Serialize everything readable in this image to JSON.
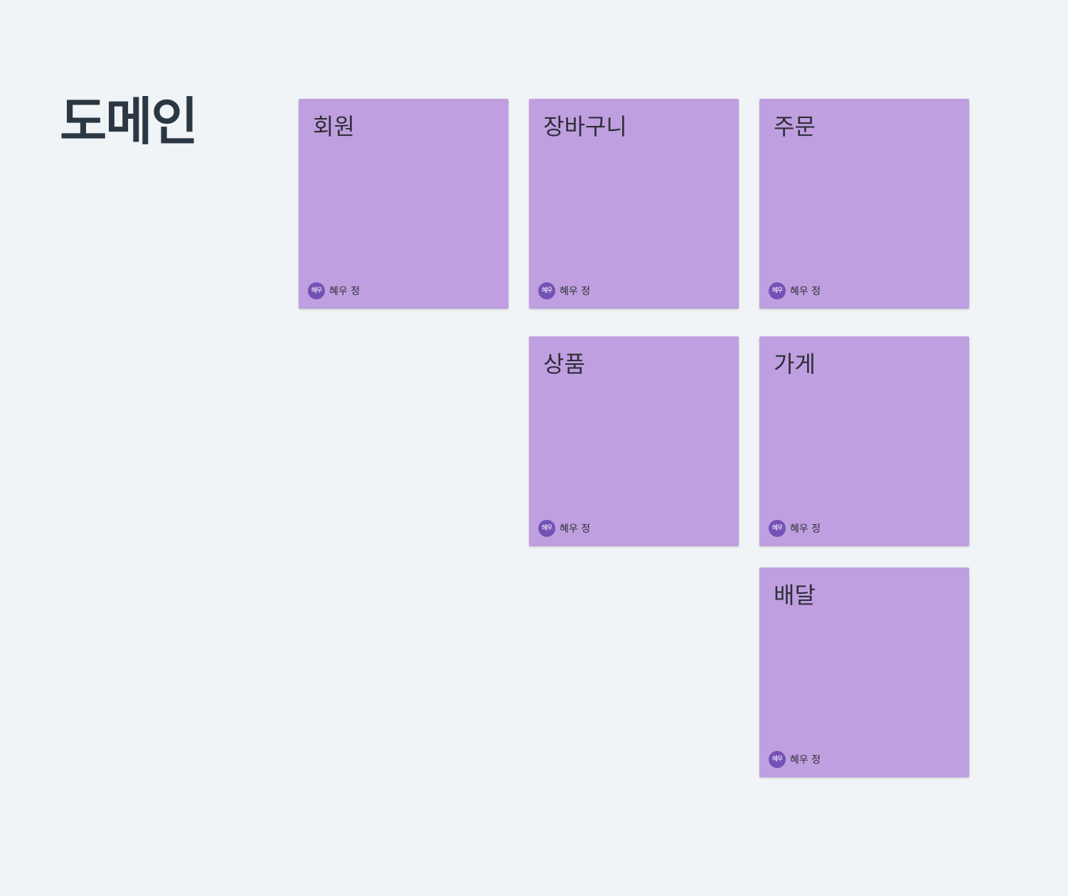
{
  "board": {
    "title": "도메인"
  },
  "colors": {
    "background": "#f0f4f7",
    "sticky": "#c09fe0",
    "avatar": "#7451b5",
    "text": "#2e2f38"
  },
  "stickies": [
    {
      "title": "회원",
      "author_initials": "혜우",
      "author_name": "혜우 정"
    },
    {
      "title": "장바구니",
      "author_initials": "혜우",
      "author_name": "혜우 정"
    },
    {
      "title": "주문",
      "author_initials": "혜우",
      "author_name": "혜우 정"
    },
    {
      "title": "상품",
      "author_initials": "혜우",
      "author_name": "혜우 정"
    },
    {
      "title": "가게",
      "author_initials": "혜우",
      "author_name": "혜우 정"
    },
    {
      "title": "배달",
      "author_initials": "혜우",
      "author_name": "혜우 정"
    }
  ]
}
